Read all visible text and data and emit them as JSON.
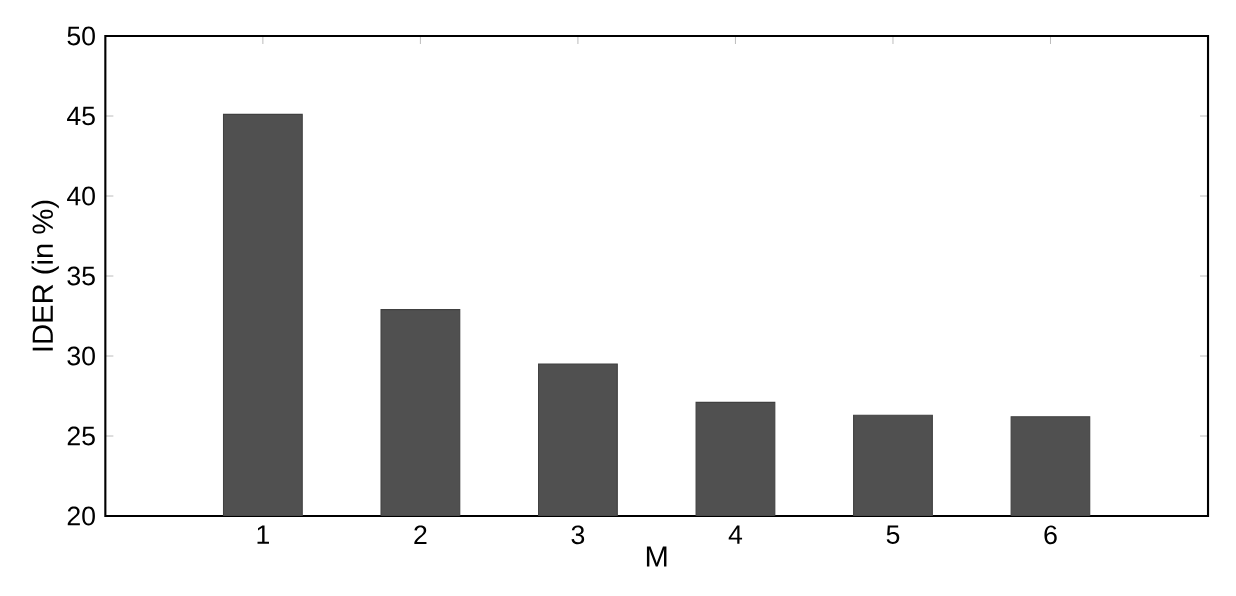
{
  "chart_data": {
    "type": "bar",
    "xlabel": "M",
    "ylabel": "IDER (in %)",
    "categories": [
      "1",
      "2",
      "3",
      "4",
      "5",
      "6"
    ],
    "values": [
      45.1,
      32.9,
      29.5,
      27.1,
      26.3,
      26.2
    ],
    "color": "#505050",
    "ylim": [
      20,
      50
    ],
    "yticks": [
      20,
      25,
      30,
      35,
      40,
      45,
      50
    ],
    "grid": false
  }
}
